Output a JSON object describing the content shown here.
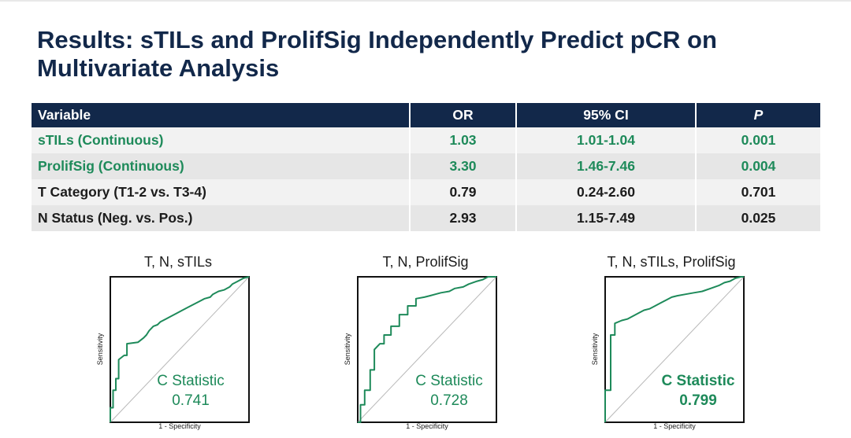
{
  "title": "Results: sTILs and ProlifSig Independently Predict pCR on Multivariate Analysis",
  "table": {
    "headers": [
      "Variable",
      "OR",
      "95% CI",
      "P"
    ],
    "rows": [
      {
        "variable": "sTILs (Continuous)",
        "or": "1.03",
        "ci": "1.01-1.04",
        "p": "0.001",
        "highlight": true
      },
      {
        "variable": "ProlifSig (Continuous)",
        "or": "3.30",
        "ci": "1.46-7.46",
        "p": "0.004",
        "highlight": true
      },
      {
        "variable": "T Category (T1-2 vs. T3-4)",
        "or": "0.79",
        "ci": "0.24-2.60",
        "p": "0.701",
        "highlight": false
      },
      {
        "variable": "N Status (Neg. vs. Pos.)",
        "or": "2.93",
        "ci": "1.15-7.49",
        "p": "0.025",
        "highlight": false
      }
    ]
  },
  "colors": {
    "navy": "#12284a",
    "green": "#1e8a5a",
    "diagonal": "#b8b8b8"
  },
  "chart_data": [
    {
      "type": "line",
      "title": "T, N, sTILs",
      "xlabel": "1 - Specificity",
      "ylabel": "Sensitivity",
      "xlim": [
        0,
        1
      ],
      "ylim": [
        0,
        1
      ],
      "stat_label": "C Statistic",
      "stat_value": "0.741",
      "stat_bold": false,
      "series": [
        {
          "name": "ROC",
          "x": [
            0,
            0,
            0.02,
            0.02,
            0.04,
            0.04,
            0.06,
            0.06,
            0.1,
            0.12,
            0.12,
            0.2,
            0.24,
            0.26,
            0.28,
            0.31,
            0.34,
            0.36,
            0.4,
            0.44,
            0.48,
            0.52,
            0.56,
            0.6,
            0.64,
            0.68,
            0.72,
            0.74,
            0.78,
            0.82,
            0.86,
            0.88,
            0.92,
            0.96,
            1
          ],
          "y": [
            0,
            0.1,
            0.1,
            0.22,
            0.22,
            0.3,
            0.3,
            0.43,
            0.46,
            0.46,
            0.54,
            0.55,
            0.58,
            0.6,
            0.63,
            0.66,
            0.67,
            0.69,
            0.71,
            0.73,
            0.75,
            0.77,
            0.79,
            0.81,
            0.83,
            0.85,
            0.86,
            0.88,
            0.9,
            0.91,
            0.93,
            0.95,
            0.97,
            0.99,
            1
          ]
        }
      ]
    },
    {
      "type": "line",
      "title": "T, N, ProlifSig",
      "xlabel": "1 - Specificity",
      "ylabel": "Sensitivity",
      "xlim": [
        0,
        1
      ],
      "ylim": [
        0,
        1
      ],
      "stat_label": "C Statistic",
      "stat_value": "0.728",
      "stat_bold": false,
      "series": [
        {
          "name": "ROC",
          "x": [
            0,
            0.02,
            0.02,
            0.05,
            0.05,
            0.09,
            0.09,
            0.12,
            0.12,
            0.16,
            0.19,
            0.19,
            0.24,
            0.24,
            0.3,
            0.3,
            0.36,
            0.36,
            0.42,
            0.42,
            0.48,
            0.52,
            0.56,
            0.6,
            0.66,
            0.7,
            0.76,
            0.8,
            0.86,
            0.9,
            0.94,
            1
          ],
          "y": [
            0,
            0,
            0.12,
            0.12,
            0.22,
            0.22,
            0.36,
            0.36,
            0.5,
            0.54,
            0.54,
            0.6,
            0.6,
            0.66,
            0.66,
            0.74,
            0.74,
            0.8,
            0.8,
            0.85,
            0.86,
            0.87,
            0.88,
            0.89,
            0.9,
            0.92,
            0.93,
            0.95,
            0.97,
            0.98,
            1,
            1
          ]
        }
      ]
    },
    {
      "type": "line",
      "title": "T, N, sTILs, ProlifSig",
      "xlabel": "1 - Specificity",
      "ylabel": "Sensitivity",
      "xlim": [
        0,
        1
      ],
      "ylim": [
        0,
        1
      ],
      "stat_label": "C Statistic",
      "stat_value": "0.799",
      "stat_bold": true,
      "series": [
        {
          "name": "ROC",
          "x": [
            0,
            0,
            0.04,
            0.04,
            0.07,
            0.07,
            0.12,
            0.16,
            0.2,
            0.24,
            0.28,
            0.32,
            0.36,
            0.4,
            0.44,
            0.48,
            0.52,
            0.58,
            0.64,
            0.7,
            0.76,
            0.82,
            0.86,
            0.9,
            0.94,
            0.98,
            1
          ],
          "y": [
            0,
            0.22,
            0.22,
            0.6,
            0.6,
            0.68,
            0.7,
            0.71,
            0.73,
            0.75,
            0.77,
            0.78,
            0.8,
            0.82,
            0.84,
            0.86,
            0.87,
            0.88,
            0.89,
            0.9,
            0.92,
            0.94,
            0.96,
            0.97,
            0.99,
            1,
            1
          ]
        }
      ]
    }
  ]
}
